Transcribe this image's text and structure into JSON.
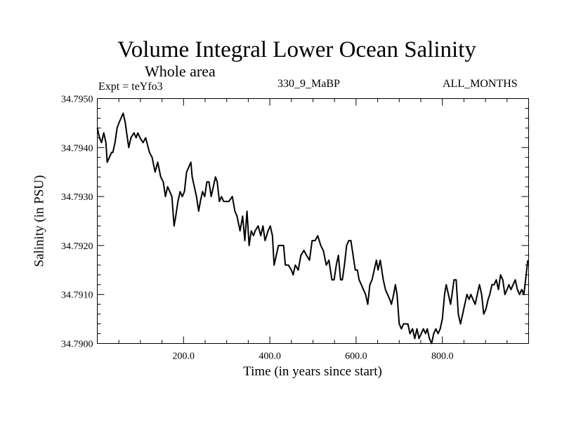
{
  "chart_data": {
    "type": "line",
    "title": "Volume Integral Lower Ocean Salinity",
    "subtitle": "Whole area",
    "annotations": {
      "experiment": "Expt = teYfo3",
      "run": "330_9_MaBP",
      "months": "ALL_MONTHS"
    },
    "xlabel": "Time (in years since start)",
    "ylabel": "Salinity (in PSU)",
    "xlim": [
      0,
      1000
    ],
    "ylim": [
      34.79,
      34.795
    ],
    "x_major_ticks": [
      200,
      400,
      600,
      800
    ],
    "x_tick_labels": [
      "200.0",
      "400.0",
      "600.0",
      "800.0"
    ],
    "x_minor_step": 50,
    "y_major_ticks": [
      34.79,
      34.791,
      34.792,
      34.793,
      34.794,
      34.795
    ],
    "y_tick_labels": [
      "34.7900",
      "34.7910",
      "34.7920",
      "34.7930",
      "34.7940",
      "34.7950"
    ],
    "y_minor_step": 0.0002,
    "grid": false,
    "line_color": "#000000",
    "series": [
      {
        "name": "salinity",
        "x": [
          0,
          5,
          10,
          15,
          20,
          23,
          28,
          33,
          36,
          41,
          46,
          50,
          55,
          60,
          65,
          68,
          73,
          78,
          85,
          90,
          94,
          99,
          106,
          112,
          121,
          127,
          134,
          140,
          147,
          153,
          158,
          163,
          168,
          173,
          178,
          182,
          187,
          192,
          197,
          202,
          207,
          212,
          217,
          220,
          225,
          230,
          235,
          239,
          244,
          249,
          254,
          259,
          264,
          269,
          274,
          278,
          283,
          288,
          293,
          298,
          305,
          313,
          319,
          324,
          331,
          337,
          342,
          347,
          352,
          357,
          362,
          366,
          373,
          379,
          384,
          389,
          396,
          401,
          406,
          410,
          415,
          420,
          427,
          432,
          436,
          443,
          450,
          454,
          459,
          466,
          472,
          479,
          485,
          492,
          498,
          505,
          511,
          518,
          524,
          531,
          537,
          544,
          549,
          554,
          559,
          564,
          568,
          573,
          578,
          583,
          588,
          593,
          598,
          603,
          607,
          612,
          617,
          622,
          627,
          632,
          637,
          642,
          647,
          651,
          656,
          663,
          668,
          673,
          678,
          682,
          687,
          691,
          695,
          700,
          705,
          710,
          715,
          720,
          725,
          731,
          736,
          741,
          746,
          751,
          756,
          761,
          765,
          770,
          775,
          780,
          785,
          790,
          795,
          800,
          805,
          809,
          814,
          819,
          824,
          827,
          832,
          837,
          842,
          847,
          852,
          857,
          862,
          866,
          871,
          876,
          881,
          886,
          891,
          896,
          901,
          906,
          910,
          915,
          920,
          925,
          930,
          935,
          940,
          945,
          950,
          954,
          959,
          964,
          969,
          974,
          979,
          984,
          989,
          993,
          998
        ],
        "values": [
          34.7944,
          34.7942,
          34.7941,
          34.7943,
          34.7941,
          34.7937,
          34.7938,
          34.7939,
          34.7939,
          34.7941,
          34.7944,
          34.7945,
          34.7946,
          34.7947,
          34.7945,
          34.7943,
          34.794,
          34.7942,
          34.7943,
          34.7942,
          34.7943,
          34.7942,
          34.7941,
          34.7942,
          34.7939,
          34.7938,
          34.7935,
          34.7937,
          34.7934,
          34.7933,
          34.793,
          34.7932,
          34.7931,
          34.793,
          34.7924,
          34.7926,
          34.7929,
          34.7931,
          34.793,
          34.7931,
          34.7935,
          34.7936,
          34.7937,
          34.7934,
          34.7932,
          34.793,
          34.7927,
          34.7929,
          34.7931,
          34.793,
          34.7933,
          34.7933,
          34.793,
          34.7932,
          34.7934,
          34.7933,
          34.7929,
          34.793,
          34.7929,
          34.7929,
          34.7929,
          34.793,
          34.7927,
          34.7926,
          34.7923,
          34.7926,
          34.7921,
          34.7927,
          34.792,
          34.7923,
          34.7922,
          34.7923,
          34.7924,
          34.7922,
          34.7924,
          34.7921,
          34.7923,
          34.7924,
          34.7922,
          34.7916,
          34.7918,
          34.792,
          34.792,
          34.792,
          34.7916,
          34.7916,
          34.7915,
          34.7914,
          34.7916,
          34.7915,
          34.7918,
          34.7919,
          34.7918,
          34.7917,
          34.7921,
          34.7921,
          34.7922,
          34.792,
          34.7919,
          34.7916,
          34.7917,
          34.7913,
          34.7913,
          34.7916,
          34.7918,
          34.7913,
          34.7913,
          34.7916,
          34.792,
          34.7921,
          34.7921,
          34.7918,
          34.7915,
          34.7915,
          34.7913,
          34.7912,
          34.7911,
          34.791,
          34.7908,
          34.7912,
          34.7913,
          34.7915,
          34.7917,
          34.7915,
          34.7917,
          34.7913,
          34.7911,
          34.791,
          34.7909,
          34.7908,
          34.791,
          34.7912,
          34.791,
          34.7904,
          34.7903,
          34.7904,
          34.7904,
          34.7904,
          34.7902,
          34.7903,
          34.7901,
          34.7903,
          34.7901,
          34.7902,
          34.7903,
          34.7902,
          34.7903,
          34.7901,
          34.79,
          34.7902,
          34.7903,
          34.7902,
          34.7903,
          34.7905,
          34.791,
          34.7912,
          34.791,
          34.7908,
          34.7911,
          34.7913,
          34.7913,
          34.7906,
          34.7904,
          34.7906,
          34.7908,
          34.791,
          34.7909,
          34.791,
          34.7909,
          34.7908,
          34.791,
          34.7912,
          34.791,
          34.7906,
          34.7907,
          34.7909,
          34.791,
          34.7912,
          34.7912,
          34.7913,
          34.7911,
          34.7914,
          34.7913,
          34.791,
          34.7911,
          34.7912,
          34.7911,
          34.7912,
          34.7913,
          34.7911,
          34.791,
          34.7911,
          34.791,
          34.7913,
          34.7917
        ]
      }
    ]
  }
}
